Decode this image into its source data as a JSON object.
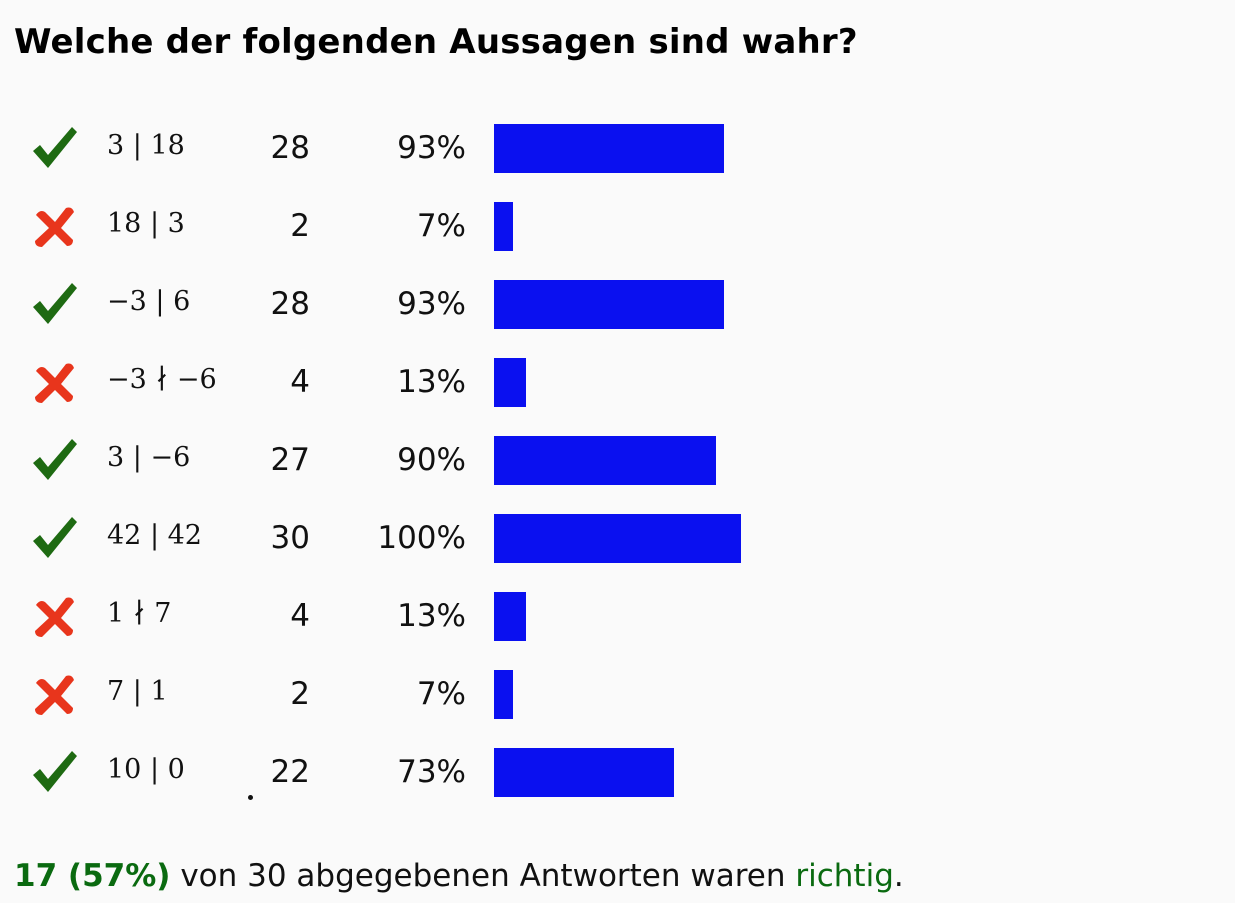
{
  "question": {
    "title": "Welche der folgenden Aussagen sind wahr?"
  },
  "colors": {
    "bar": "#0a10f0",
    "correct_mark": "#1e6a12",
    "wrong_mark": "#e8351c",
    "summary_highlight": "#0a6a10"
  },
  "answers": [
    {
      "correct": true,
      "icon": "checkmark-icon",
      "statement": "3 | 18",
      "count": "28",
      "percent": "93%",
      "share": 0.93
    },
    {
      "correct": false,
      "icon": "cross-icon",
      "statement": "18 | 3",
      "count": "2",
      "percent": "7%",
      "share": 0.07
    },
    {
      "correct": true,
      "icon": "checkmark-icon",
      "statement": "−3 | 6",
      "count": "28",
      "percent": "93%",
      "share": 0.93
    },
    {
      "correct": false,
      "icon": "cross-icon",
      "statement": "−3 ∤ −6",
      "count": "4",
      "percent": "13%",
      "share": 0.13
    },
    {
      "correct": true,
      "icon": "checkmark-icon",
      "statement": "3 | −6",
      "count": "27",
      "percent": "90%",
      "share": 0.9
    },
    {
      "correct": true,
      "icon": "checkmark-icon",
      "statement": "42 | 42",
      "count": "30",
      "percent": "100%",
      "share": 1.0
    },
    {
      "correct": false,
      "icon": "cross-icon",
      "statement": "1 ∤ 7",
      "count": "4",
      "percent": "13%",
      "share": 0.13
    },
    {
      "correct": false,
      "icon": "cross-icon",
      "statement": "7 | 1",
      "count": "2",
      "percent": "7%",
      "share": 0.07
    },
    {
      "correct": true,
      "icon": "checkmark-icon",
      "statement": "10 | 0",
      "count": "22",
      "percent": "73%",
      "share": 0.73
    }
  ],
  "summary": {
    "correct_count": "17 (57%)",
    "middle": " von 30 abgegebenen Antworten waren ",
    "richtig": "richtig",
    "end": "."
  }
}
